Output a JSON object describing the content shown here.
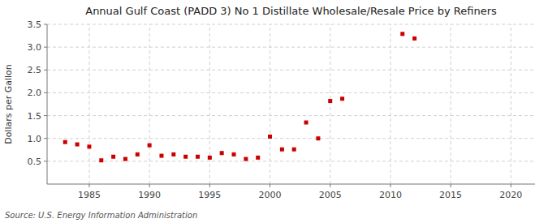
{
  "chart_data": {
    "type": "scatter",
    "title": "Annual Gulf Coast (PADD 3) No 1 Distillate Wholesale/Resale Price by Refiners",
    "ylabel": "Dollars per Gallon",
    "annotations": [
      "Source: U.S. Energy Information Administration"
    ],
    "x": [
      1983,
      1984,
      1985,
      1986,
      1987,
      1988,
      1989,
      1990,
      1991,
      1992,
      1993,
      1994,
      1995,
      1996,
      1997,
      1998,
      1999,
      2000,
      2001,
      2002,
      2003,
      2004,
      2005,
      2006,
      2011,
      2012
    ],
    "values": [
      0.92,
      0.87,
      0.82,
      0.52,
      0.6,
      0.55,
      0.65,
      0.85,
      0.62,
      0.65,
      0.6,
      0.6,
      0.58,
      0.68,
      0.65,
      0.55,
      0.58,
      1.04,
      0.76,
      0.76,
      1.35,
      1.0,
      1.82,
      1.87,
      3.29,
      3.19
    ],
    "color": "#cc0000",
    "marker": "square",
    "xlim": [
      1981.5,
      2022
    ],
    "ylim": [
      0.0,
      3.5
    ],
    "xticks": [
      1985,
      1990,
      1995,
      2000,
      2005,
      2010,
      2015,
      2020
    ],
    "yticks": [
      0.5,
      {
        "value": 1.0,
        "label": "1.0"
      },
      1.5,
      {
        "value": 2.0,
        "label": "2.0"
      },
      2.5,
      {
        "value": 3.0,
        "label": "3.0"
      },
      3.5
    ],
    "grid": true
  }
}
